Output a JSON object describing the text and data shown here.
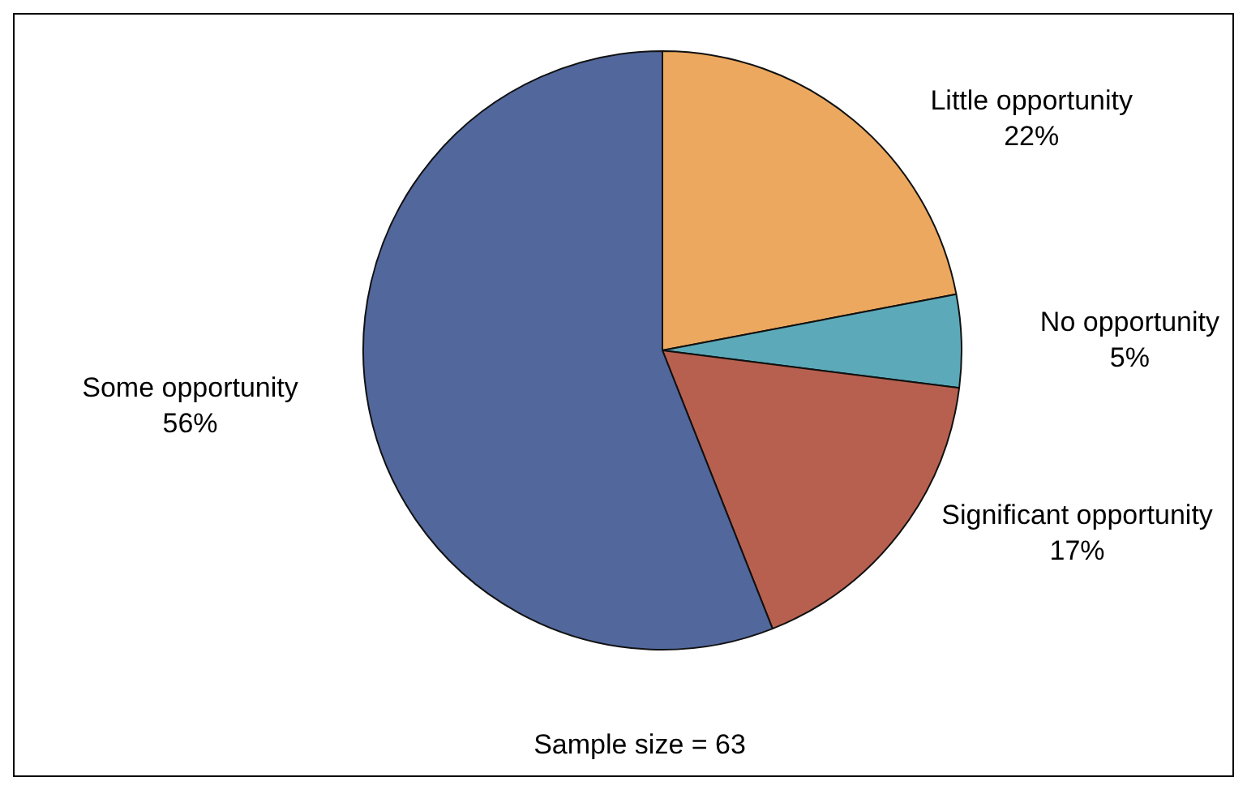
{
  "chart_data": {
    "type": "pie",
    "categories": [
      "Little opportunity",
      "No opportunity",
      "Significant opportunity",
      "Some opportunity"
    ],
    "values": [
      22,
      5,
      17,
      56
    ],
    "colors": [
      "#eca85e",
      "#5caab9",
      "#b8604f",
      "#52679c"
    ],
    "value_labels": [
      "22%",
      "5%",
      "17%",
      "56%"
    ],
    "legend": false,
    "annotations": [
      "Sample size = 63"
    ]
  }
}
